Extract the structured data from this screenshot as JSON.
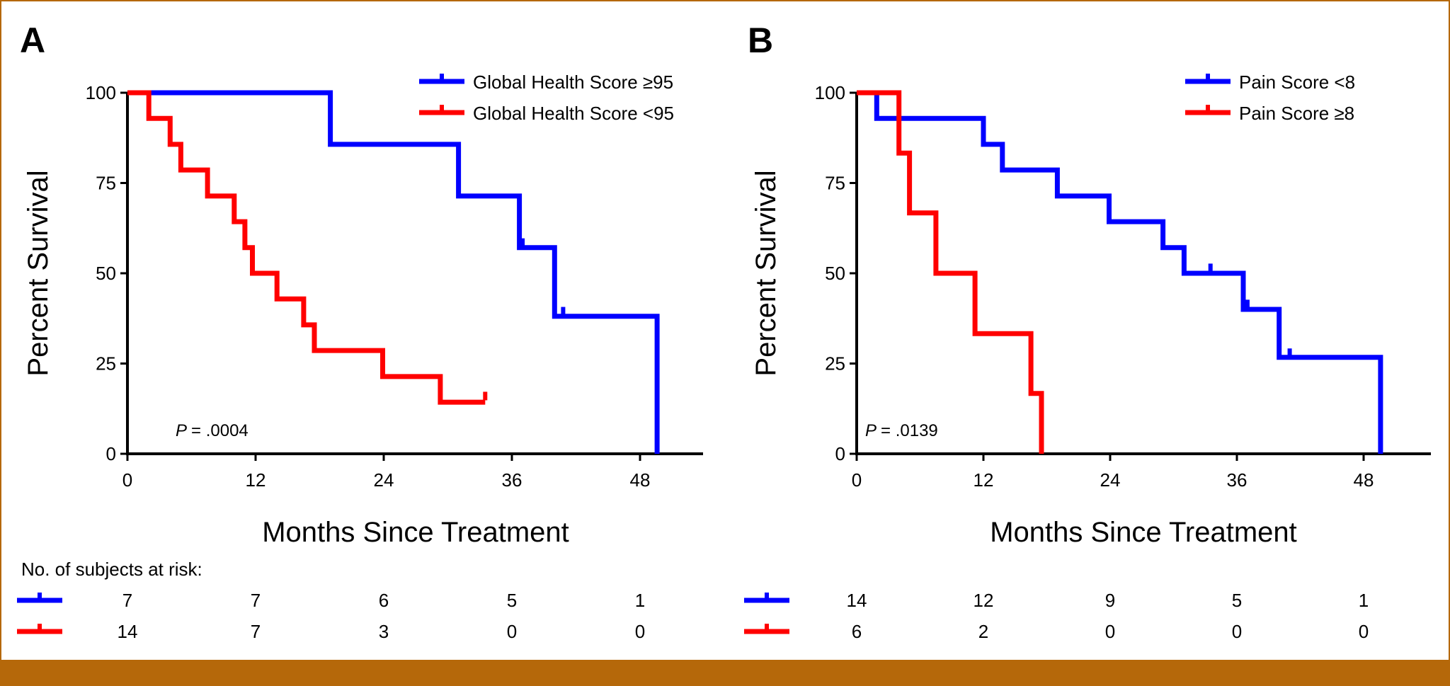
{
  "chart_data": [
    {
      "type": "line",
      "panel_label": "A",
      "xlabel": "Months Since Treatment",
      "ylabel": "Percent Survival",
      "xlim": [
        0,
        54
      ],
      "ylim": [
        0,
        100
      ],
      "x_ticks": [
        0,
        12,
        24,
        36,
        48
      ],
      "x_tick_labels": [
        "0",
        "12",
        "24",
        "36",
        "48"
      ],
      "y_ticks": [
        0,
        25,
        50,
        75,
        100
      ],
      "y_tick_labels": [
        "0",
        "25",
        "50",
        "75",
        "100"
      ],
      "legend_position": "top-right",
      "p_label": "P",
      "p_value": "= .0004",
      "series": [
        {
          "name": "Global Health Score ≥95",
          "color": "#0000ff",
          "steps": [
            [
              0,
              100
            ],
            [
              19,
              100
            ],
            [
              19,
              85.7
            ],
            [
              31,
              85.7
            ],
            [
              31,
              71.4
            ],
            [
              36.7,
              71.4
            ],
            [
              36.7,
              57.1
            ],
            [
              40,
              57.1
            ],
            [
              40,
              38.1
            ],
            [
              49.6,
              38.1
            ],
            [
              49.6,
              0
            ]
          ],
          "censors": [
            [
              37,
              58.5
            ],
            [
              40.8,
              39.5
            ]
          ]
        },
        {
          "name": "Global Health Score <95",
          "color": "#ff0000",
          "steps": [
            [
              0,
              100
            ],
            [
              2,
              100
            ],
            [
              2,
              92.9
            ],
            [
              4,
              92.9
            ],
            [
              4,
              85.7
            ],
            [
              5,
              85.7
            ],
            [
              5,
              78.6
            ],
            [
              7.5,
              78.6
            ],
            [
              7.5,
              71.4
            ],
            [
              10,
              71.4
            ],
            [
              10,
              64.3
            ],
            [
              11,
              64.3
            ],
            [
              11,
              57.1
            ],
            [
              11.7,
              57.1
            ],
            [
              11.7,
              50
            ],
            [
              14,
              50
            ],
            [
              14,
              42.9
            ],
            [
              16.5,
              42.9
            ],
            [
              16.5,
              35.7
            ],
            [
              17.5,
              35.7
            ],
            [
              17.5,
              28.6
            ],
            [
              23.9,
              28.6
            ],
            [
              23.9,
              21.4
            ],
            [
              29.3,
              21.4
            ],
            [
              29.3,
              14.3
            ],
            [
              33.5,
              14.3
            ]
          ],
          "censors": [
            [
              33.5,
              16
            ]
          ]
        }
      ],
      "risk_table": {
        "title": "No. of subjects at risk:",
        "rows": [
          {
            "color": "#0000ff",
            "values": [
              "7",
              "7",
              "6",
              "5",
              "1"
            ]
          },
          {
            "color": "#ff0000",
            "values": [
              "14",
              "7",
              "3",
              "0",
              "0"
            ]
          }
        ]
      }
    },
    {
      "type": "line",
      "panel_label": "B",
      "xlabel": "Months Since Treatment",
      "ylabel": "Percent Survival",
      "xlim": [
        0,
        54
      ],
      "ylim": [
        0,
        100
      ],
      "x_ticks": [
        0,
        12,
        24,
        36,
        48
      ],
      "x_tick_labels": [
        "0",
        "12",
        "24",
        "36",
        "48"
      ],
      "y_ticks": [
        0,
        25,
        50,
        75,
        100
      ],
      "y_tick_labels": [
        "0",
        "25",
        "50",
        "75",
        "100"
      ],
      "legend_position": "top-right",
      "p_label": "P",
      "p_value": "= .0139",
      "series": [
        {
          "name": "Pain Score <8",
          "color": "#0000ff",
          "steps": [
            [
              0,
              100
            ],
            [
              1.9,
              100
            ],
            [
              1.9,
              92.9
            ],
            [
              12,
              92.9
            ],
            [
              12,
              85.7
            ],
            [
              13.8,
              85.7
            ],
            [
              13.8,
              78.6
            ],
            [
              19,
              78.6
            ],
            [
              19,
              71.4
            ],
            [
              23.9,
              71.4
            ],
            [
              23.9,
              64.3
            ],
            [
              29,
              64.3
            ],
            [
              29,
              57.1
            ],
            [
              31,
              57.1
            ],
            [
              31,
              50
            ],
            [
              36.6,
              50
            ],
            [
              36.6,
              40
            ],
            [
              40,
              40
            ],
            [
              40,
              26.7
            ],
            [
              49.6,
              26.7
            ],
            [
              49.6,
              0
            ]
          ],
          "censors": [
            [
              33.5,
              51.5
            ],
            [
              37,
              41.5
            ],
            [
              41,
              28
            ]
          ]
        },
        {
          "name": "Pain Score ≥8",
          "color": "#ff0000",
          "steps": [
            [
              0,
              100
            ],
            [
              4,
              100
            ],
            [
              4,
              83.3
            ],
            [
              5,
              83.3
            ],
            [
              5,
              66.7
            ],
            [
              7.5,
              66.7
            ],
            [
              7.5,
              50
            ],
            [
              11.2,
              50
            ],
            [
              11.2,
              33.3
            ],
            [
              16.5,
              33.3
            ],
            [
              16.5,
              16.7
            ],
            [
              17.5,
              16.7
            ],
            [
              17.5,
              0
            ]
          ],
          "censors": []
        }
      ],
      "risk_table": {
        "title": "",
        "rows": [
          {
            "color": "#0000ff",
            "values": [
              "14",
              "12",
              "9",
              "5",
              "1"
            ]
          },
          {
            "color": "#ff0000",
            "values": [
              "6",
              "2",
              "0",
              "0",
              "0"
            ]
          }
        ]
      }
    }
  ]
}
